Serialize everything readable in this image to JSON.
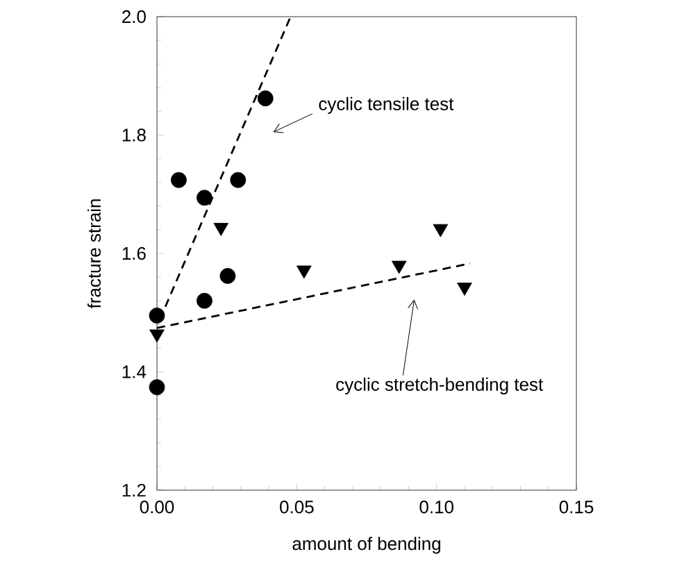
{
  "chart_data": {
    "type": "scatter",
    "xlabel": "amount of bending",
    "ylabel": "fracture strain",
    "xlim": [
      0,
      0.15
    ],
    "ylim": [
      1.2,
      2.0
    ],
    "xticks": [
      {
        "value": 0,
        "label": "0.00"
      },
      {
        "value": 0.05,
        "label": "0.05"
      },
      {
        "value": 0.1,
        "label": "0.10"
      },
      {
        "value": 0.15,
        "label": "0.15"
      }
    ],
    "yticks": [
      {
        "value": 1.2,
        "label": "1.2"
      },
      {
        "value": 1.4,
        "label": "1.4"
      },
      {
        "value": 1.6,
        "label": "1.6"
      },
      {
        "value": 1.8,
        "label": "1.8"
      },
      {
        "value": 2.0,
        "label": "2.0"
      }
    ],
    "grid": false,
    "series": [
      {
        "marker": "circle",
        "color": "#000000",
        "x": [
          0.0078,
          0.017,
          0.029,
          0.0388,
          0,
          0,
          0.017,
          0.0253
        ],
        "values": [
          1.724,
          1.694,
          1.724,
          1.862,
          1.495,
          1.374,
          1.52,
          1.562
        ]
      },
      {
        "marker": "triangle",
        "color": "#000000",
        "x": [
          0.0229,
          0.0526,
          0.0866,
          0.1014,
          0.11,
          0
        ],
        "values": [
          1.644,
          1.572,
          1.58,
          1.642,
          1.543,
          1.464
        ]
      },
      {
        "type": "line",
        "marker": "none",
        "line_style": "dashed",
        "color": "#000000",
        "x": [
          0.003,
          0.0478
        ],
        "values": [
          1.51,
          2.0
        ]
      },
      {
        "type": "line",
        "marker": "none",
        "line_style": "dashed",
        "color": "#000000",
        "x": [
          0,
          0.112
        ],
        "values": [
          1.474,
          1.583
        ]
      }
    ],
    "annotations": [
      "cyclic tensile test",
      "cyclic stretch-bending test"
    ]
  }
}
